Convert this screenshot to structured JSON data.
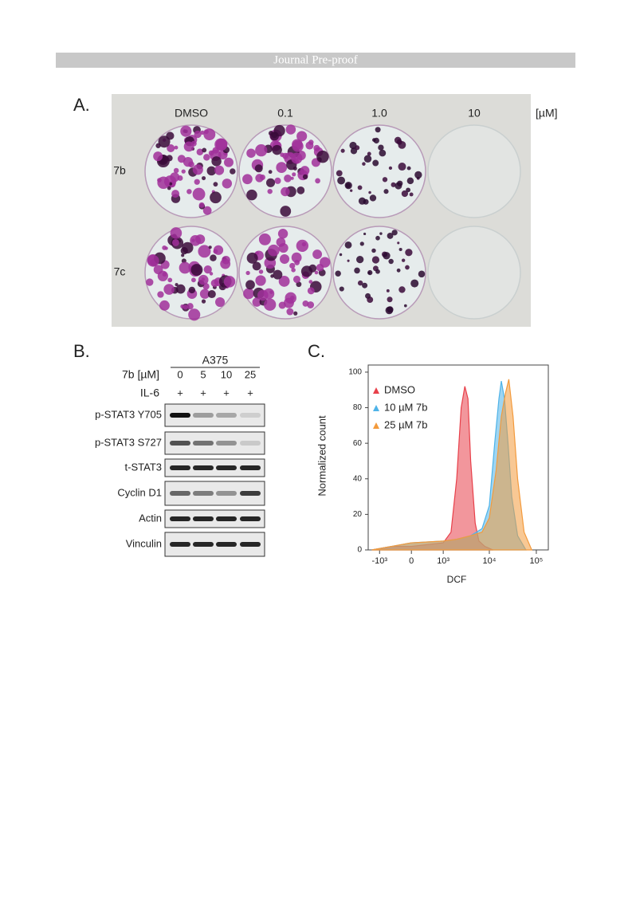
{
  "header": {
    "title": "Journal Pre-proof"
  },
  "panel_a": {
    "label": "A.",
    "columns": [
      "DMSO",
      "0.1",
      "1.0",
      "10"
    ],
    "unit": "[µM]",
    "rows": [
      "7b",
      "7c"
    ]
  },
  "panel_b": {
    "label": "B.",
    "cell_line": "A375",
    "treatment_label": "7b [µM]",
    "doses": [
      "0",
      "5",
      "10",
      "25"
    ],
    "il6_label": "IL-6",
    "il6": [
      "+",
      "+",
      "+",
      "+"
    ],
    "proteins": [
      "p-STAT3 Y705",
      "p-STAT3 S727",
      "t-STAT3",
      "Cyclin D1",
      "Actin",
      "Vinculin"
    ]
  },
  "panel_c": {
    "label": "C."
  },
  "chart_data": {
    "type": "area",
    "x_label": "DCF",
    "y_label": "Normalized count",
    "xscale": "biexponential",
    "xlim": [
      -1800,
      180000
    ],
    "ylim": [
      0,
      104
    ],
    "xticks": [
      {
        "value": -1000,
        "label": "-10³"
      },
      0,
      {
        "value": 1000,
        "label": "10³"
      },
      {
        "value": 10000,
        "label": "10⁴"
      },
      {
        "value": 100000,
        "label": "10⁵"
      }
    ],
    "yticks": [
      0,
      20,
      40,
      60,
      80,
      100
    ],
    "series": [
      {
        "name": "DMSO",
        "color": "#e8404a",
        "x": [
          -1500,
          -500,
          0,
          1000,
          1500,
          2000,
          2500,
          3000,
          3500,
          4000,
          5000,
          6000,
          8000,
          12000
        ],
        "values": [
          0,
          2,
          2,
          4,
          10,
          40,
          80,
          92,
          85,
          50,
          15,
          5,
          2,
          0
        ]
      },
      {
        "name": "10 µM 7b",
        "color": "#4fb3e8",
        "x": [
          -1500,
          -500,
          0,
          1000,
          2000,
          4000,
          7000,
          10000,
          13000,
          16000,
          18000,
          21000,
          25000,
          30000,
          40000,
          60000
        ],
        "values": [
          0,
          2,
          4,
          5,
          6,
          8,
          12,
          25,
          60,
          85,
          95,
          85,
          60,
          30,
          8,
          0
        ]
      },
      {
        "name": "25 µM 7b",
        "color": "#f39a3c",
        "x": [
          -1500,
          -500,
          0,
          1000,
          2000,
          4000,
          7000,
          10000,
          14000,
          18000,
          22000,
          26000,
          32000,
          40000,
          55000,
          80000
        ],
        "values": [
          0,
          2,
          4,
          5,
          6,
          8,
          10,
          18,
          45,
          75,
          88,
          96,
          75,
          40,
          10,
          0
        ]
      }
    ]
  }
}
